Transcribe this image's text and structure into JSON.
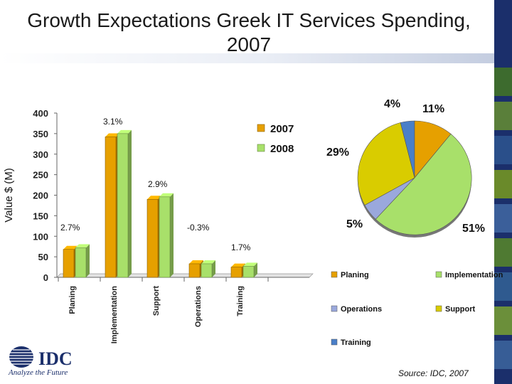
{
  "title": "Growth Expectations Greek IT Services Spending, 2007",
  "source": "Source: IDC, 2007",
  "logo": {
    "name": "IDC",
    "tagline": "Analyze the Future"
  },
  "chart_data": [
    {
      "type": "bar",
      "categories": [
        "Planing",
        "Implementation",
        "Support",
        "Operations",
        "Training"
      ],
      "series": [
        {
          "name": "2007",
          "color": "#e6a000",
          "values": [
            68,
            342,
            190,
            33,
            25
          ]
        },
        {
          "name": "2008",
          "color": "#a8e06a",
          "values": [
            72,
            350,
            196,
            33,
            27
          ]
        }
      ],
      "growth_labels": [
        "2.7%",
        "3.1%",
        "2.9%",
        "-0.3%",
        "1.7%"
      ],
      "ylabel": "Value $ (M)",
      "ylim": [
        0,
        400
      ],
      "yticks": [
        0,
        50,
        100,
        150,
        200,
        250,
        300,
        350,
        400
      ],
      "grid": false,
      "legend": "top-right"
    },
    {
      "type": "pie",
      "labels": [
        "Planing",
        "Implementation",
        "Operations",
        "Support",
        "Training"
      ],
      "values": [
        11,
        51,
        5,
        29,
        4
      ],
      "value_labels": [
        "11%",
        "51%",
        "5%",
        "29%",
        "4%"
      ],
      "colors": [
        "#e6a000",
        "#a8e06a",
        "#9aa8dc",
        "#d9cc00",
        "#4a7fc8"
      ],
      "legend": "bottom"
    }
  ]
}
